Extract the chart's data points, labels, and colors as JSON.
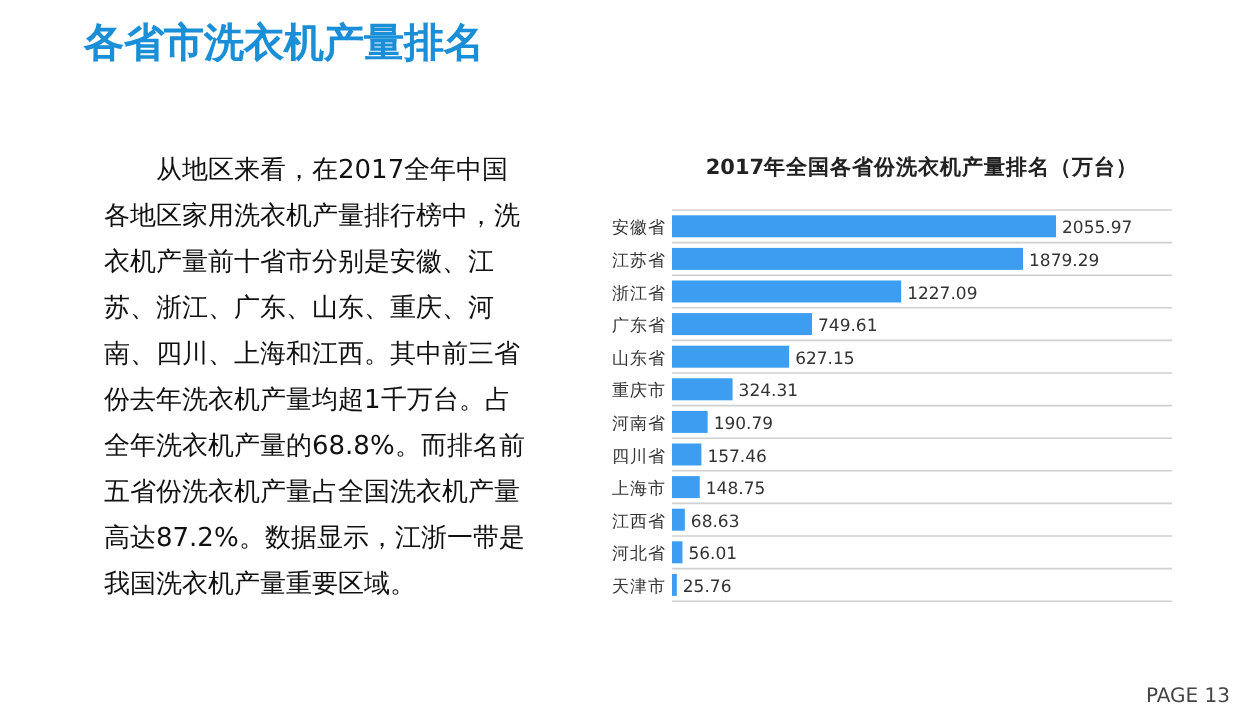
{
  "chart_data": {
    "type": "bar",
    "orientation": "horizontal",
    "title": "2017年全国各省份洗衣机产量排名（万台）",
    "subtitle": "各省市洗衣机产量排名",
    "categories": [
      "安徽省",
      "江苏省",
      "浙江省",
      "广东省",
      "山东省",
      "重庆市",
      "河南省",
      "四川省",
      "上海市",
      "江西省",
      "河北省",
      "天津市"
    ],
    "values": [
      2055.97,
      1879.29,
      1227.09,
      749.61,
      627.15,
      324.31,
      190.79,
      157.46,
      148.75,
      68.63,
      56.01,
      25.76
    ],
    "color": "#3d9df0",
    "data_labels": true,
    "grid": "y",
    "annotations": [
      "从地区来看，在2017全年中国各地区家用洗衣机产量排行榜中，洗衣机产量前十省市分别是安徽、江苏、浙江、广东、山东、重庆、河南、四川、上海和江西。其中前三省份去年洗衣机产量均超1千万台。占全年洗衣机产量的68.8%。而排名前五省份洗衣机产量占全国洗衣机产量高达87.2%。数据显示，江浙一带是我国洗衣机产量重要区域。",
      "PAGE 13"
    ]
  }
}
